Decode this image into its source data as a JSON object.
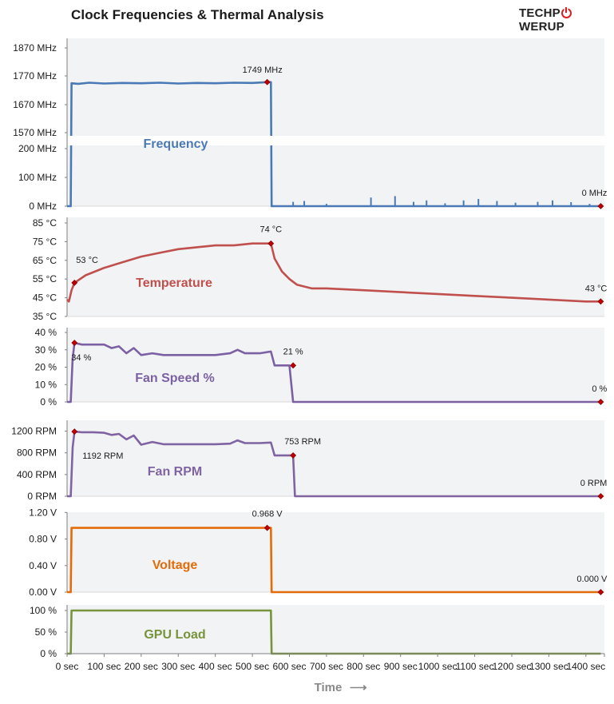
{
  "title": "Clock Frequencies & Thermal Analysis",
  "logo": {
    "pre": "TECHP",
    "post": "WERUP",
    "accent": "#d81f26",
    "icon": "power-icon"
  },
  "chart_data": {
    "type": "line",
    "x_axis": {
      "label": "Time",
      "arrow": "⟶",
      "range": [
        0,
        1450
      ],
      "ticks": [
        0,
        100,
        200,
        300,
        400,
        500,
        600,
        700,
        800,
        900,
        1000,
        1100,
        1200,
        1300,
        1400
      ],
      "tick_labels": [
        "0 sec",
        "100 sec",
        "200 sec",
        "300 sec",
        "400 sec",
        "500 sec",
        "600 sec",
        "700 sec",
        "800 sec",
        "900 sec",
        "1000 sec",
        "1100 sec",
        "1200 sec",
        "1300 sec",
        "1400 sec"
      ]
    },
    "panels": [
      {
        "name": "Frequency",
        "color": "#4a7ab5",
        "ticks": [
          "1870 MHz",
          "1770 MHz",
          "1670 MHz",
          "1570 MHz",
          "200 MHz",
          "100 MHz",
          "0 MHz"
        ],
        "upper_range": [
          1570,
          1870
        ],
        "lower_range": [
          0,
          200
        ],
        "series": [
          [
            0,
            0
          ],
          [
            10,
            0
          ],
          [
            12,
            1745
          ],
          [
            30,
            1743
          ],
          [
            60,
            1747
          ],
          [
            100,
            1744
          ],
          [
            150,
            1746
          ],
          [
            200,
            1745
          ],
          [
            250,
            1747
          ],
          [
            300,
            1744
          ],
          [
            350,
            1746
          ],
          [
            400,
            1745
          ],
          [
            450,
            1747
          ],
          [
            500,
            1746
          ],
          [
            540,
            1749
          ],
          [
            550,
            1749
          ],
          [
            552,
            0
          ],
          [
            1440,
            0
          ]
        ],
        "spikes": [
          [
            610,
            15
          ],
          [
            640,
            18
          ],
          [
            700,
            8
          ],
          [
            820,
            30
          ],
          [
            885,
            35
          ],
          [
            935,
            15
          ],
          [
            970,
            20
          ],
          [
            1020,
            10
          ],
          [
            1070,
            20
          ],
          [
            1110,
            25
          ],
          [
            1160,
            18
          ],
          [
            1210,
            12
          ],
          [
            1270,
            15
          ],
          [
            1310,
            20
          ],
          [
            1360,
            14
          ],
          [
            1410,
            8
          ]
        ],
        "annotations": [
          {
            "x": 540,
            "y": 1749,
            "label": "1749 MHz"
          },
          {
            "x": 1440,
            "y": 0,
            "label": "0 MHz"
          }
        ]
      },
      {
        "name": "Temperature",
        "color": "#c0504d",
        "ticks": [
          "85 °C",
          "75 °C",
          "65 °C",
          "55 °C",
          "45 °C",
          "35 °C"
        ],
        "range": [
          35,
          85
        ],
        "series": [
          [
            0,
            44
          ],
          [
            5,
            43
          ],
          [
            12,
            49
          ],
          [
            20,
            53
          ],
          [
            50,
            57
          ],
          [
            100,
            61
          ],
          [
            150,
            64
          ],
          [
            200,
            67
          ],
          [
            250,
            69
          ],
          [
            300,
            71
          ],
          [
            350,
            72
          ],
          [
            400,
            73
          ],
          [
            450,
            73
          ],
          [
            500,
            74
          ],
          [
            550,
            74
          ],
          [
            560,
            66
          ],
          [
            580,
            59
          ],
          [
            600,
            55
          ],
          [
            620,
            52
          ],
          [
            660,
            50
          ],
          [
            700,
            50
          ],
          [
            800,
            49
          ],
          [
            900,
            48
          ],
          [
            1000,
            47
          ],
          [
            1100,
            46
          ],
          [
            1200,
            45
          ],
          [
            1300,
            44
          ],
          [
            1400,
            43
          ],
          [
            1440,
            43
          ]
        ],
        "annotations": [
          {
            "x": 20,
            "y": 53,
            "label": "53 °C"
          },
          {
            "x": 550,
            "y": 74,
            "label": "74 °C"
          },
          {
            "x": 1440,
            "y": 43,
            "label": "43 °C"
          }
        ]
      },
      {
        "name": "Fan Speed %",
        "color": "#7b60a3",
        "ticks": [
          "40 %",
          "30 %",
          "20 %",
          "10 %",
          "0 %"
        ],
        "range": [
          0,
          40
        ],
        "series": [
          [
            0,
            0
          ],
          [
            10,
            0
          ],
          [
            15,
            25
          ],
          [
            20,
            34
          ],
          [
            40,
            33
          ],
          [
            70,
            33
          ],
          [
            100,
            33
          ],
          [
            120,
            31
          ],
          [
            140,
            32
          ],
          [
            160,
            28
          ],
          [
            180,
            31
          ],
          [
            200,
            27
          ],
          [
            230,
            28
          ],
          [
            260,
            27
          ],
          [
            300,
            27
          ],
          [
            350,
            27
          ],
          [
            400,
            27
          ],
          [
            440,
            28
          ],
          [
            460,
            30
          ],
          [
            480,
            28
          ],
          [
            520,
            28
          ],
          [
            550,
            29
          ],
          [
            560,
            21
          ],
          [
            600,
            21
          ],
          [
            610,
            0
          ],
          [
            1440,
            0
          ]
        ],
        "annotations": [
          {
            "x": 20,
            "y": 34,
            "label": "34 %"
          },
          {
            "x": 610,
            "y": 21,
            "label": "21 %"
          },
          {
            "x": 1440,
            "y": 0,
            "label": "0 %"
          }
        ]
      },
      {
        "name": "Fan RPM",
        "color": "#8064a2",
        "ticks": [
          "1200 RPM",
          "800 RPM",
          "400 RPM",
          "0 RPM"
        ],
        "range": [
          0,
          1400
        ],
        "series": [
          [
            0,
            0
          ],
          [
            10,
            0
          ],
          [
            15,
            900
          ],
          [
            20,
            1192
          ],
          [
            40,
            1180
          ],
          [
            70,
            1180
          ],
          [
            100,
            1170
          ],
          [
            120,
            1130
          ],
          [
            140,
            1150
          ],
          [
            160,
            1050
          ],
          [
            180,
            1120
          ],
          [
            200,
            950
          ],
          [
            230,
            1000
          ],
          [
            260,
            960
          ],
          [
            300,
            960
          ],
          [
            350,
            960
          ],
          [
            400,
            960
          ],
          [
            440,
            970
          ],
          [
            460,
            1030
          ],
          [
            480,
            980
          ],
          [
            520,
            980
          ],
          [
            550,
            990
          ],
          [
            560,
            753
          ],
          [
            610,
            753
          ],
          [
            615,
            0
          ],
          [
            1440,
            0
          ]
        ],
        "annotations": [
          {
            "x": 20,
            "y": 1192,
            "label": "1192 RPM"
          },
          {
            "x": 610,
            "y": 753,
            "label": "753 RPM"
          },
          {
            "x": 1440,
            "y": 0,
            "label": "0 RPM"
          }
        ]
      },
      {
        "name": "Voltage",
        "color": "#e36c09",
        "ticks": [
          "1.20 V",
          "0.80 V",
          "0.40 V",
          "0.00 V"
        ],
        "range": [
          0,
          1.3
        ],
        "series": [
          [
            0,
            0
          ],
          [
            10,
            0
          ],
          [
            12,
            0.968
          ],
          [
            550,
            0.968
          ],
          [
            552,
            0
          ],
          [
            1440,
            0
          ]
        ],
        "annotations": [
          {
            "x": 540,
            "y": 0.968,
            "label": "0.968 V"
          },
          {
            "x": 1440,
            "y": 0,
            "label": "0.000 V"
          }
        ]
      },
      {
        "name": "GPU Load",
        "color": "#77933c",
        "ticks": [
          "100 %",
          "50 %",
          "0 %"
        ],
        "range": [
          0,
          100
        ],
        "series": [
          [
            0,
            0
          ],
          [
            10,
            0
          ],
          [
            12,
            100
          ],
          [
            550,
            100
          ],
          [
            552,
            0
          ],
          [
            1440,
            0
          ]
        ],
        "annotations": []
      }
    ]
  }
}
